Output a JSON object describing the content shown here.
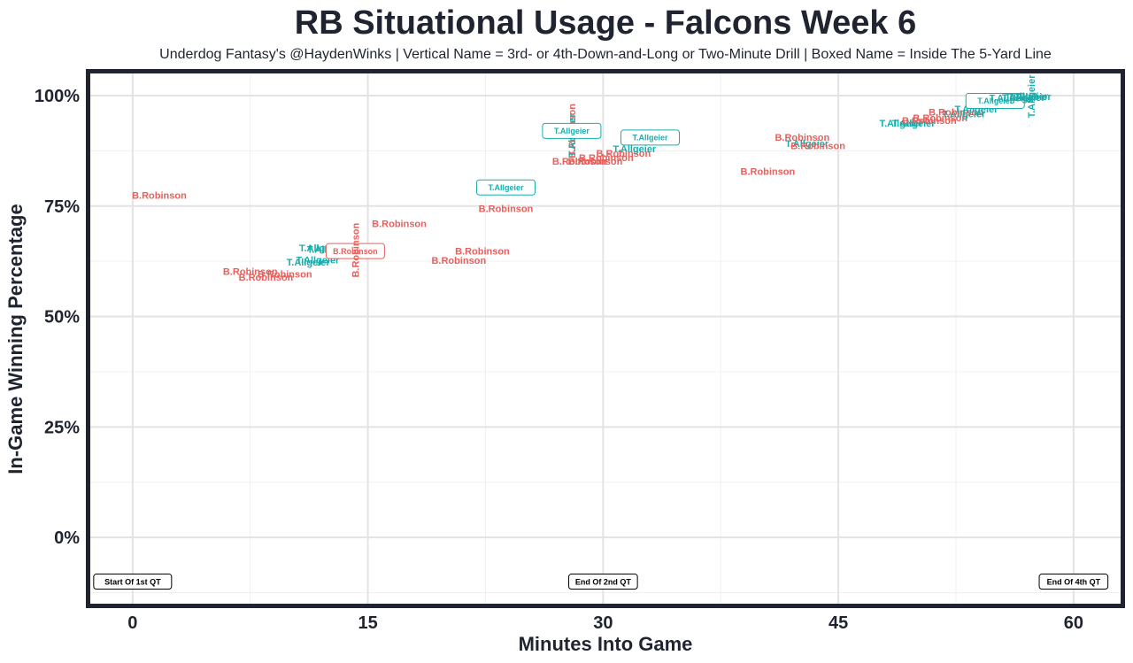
{
  "chart_data": {
    "type": "scatter",
    "title": "RB Situational Usage - Falcons Week 6",
    "subtitle": "Underdog Fantasy's @HaydenWinks | Vertical Name = 3rd- or 4th-Down-and-Long or Two-Minute Drill | Boxed Name = Inside The 5-Yard Line",
    "xlabel": "Minutes Into Game",
    "ylabel": "In-Game Winning Percentage",
    "xlim": [
      -2.7,
      63
    ],
    "ylim": [
      -15,
      105
    ],
    "x_ticks": [
      0,
      15,
      30,
      45,
      60
    ],
    "x_tick_labels": [
      "0",
      "15",
      "30",
      "45",
      "60"
    ],
    "y_ticks": [
      0,
      25,
      50,
      75,
      100
    ],
    "y_tick_labels": [
      "0%",
      "25%",
      "50%",
      "75%",
      "100%"
    ],
    "grid": true,
    "series_colors": {
      "B.Robinson": "#e8605c",
      "T.Allgeier": "#1aadad"
    },
    "quarter_markers": [
      {
        "x": 0,
        "y": -10,
        "label": "Start Of 1st QT"
      },
      {
        "x": 30,
        "y": -10,
        "label": "End Of 2nd QT"
      },
      {
        "x": 60,
        "y": -10,
        "label": "End Of 4th QT"
      }
    ],
    "points": [
      {
        "name": "B.Robinson",
        "x": 1.7,
        "y": 77.5
      },
      {
        "name": "B.Robinson",
        "x": 7.5,
        "y": 60.2
      },
      {
        "name": "B.Robinson",
        "x": 8.5,
        "y": 58.9
      },
      {
        "name": "B.Robinson",
        "x": 9.7,
        "y": 59.6
      },
      {
        "name": "T.Allgeier",
        "x": 12.0,
        "y": 65.5
      },
      {
        "name": "T.Allgeier",
        "x": 12.5,
        "y": 65.2
      },
      {
        "name": "T.Allgeier",
        "x": 11.2,
        "y": 62.3
      },
      {
        "name": "T.Allgeier",
        "x": 11.8,
        "y": 62.8
      },
      {
        "name": "B.Robinson",
        "x": 14.2,
        "y": 64.8,
        "boxed": true
      },
      {
        "name": "B.Robinson",
        "x": 14.2,
        "y": 65.0,
        "vertical": true
      },
      {
        "name": "B.Robinson",
        "x": 17.0,
        "y": 71.0
      },
      {
        "name": "B.Robinson",
        "x": 22.3,
        "y": 64.8
      },
      {
        "name": "B.Robinson",
        "x": 20.8,
        "y": 62.7
      },
      {
        "name": "B.Robinson",
        "x": 23.8,
        "y": 74.4
      },
      {
        "name": "T.Allgeier",
        "x": 23.8,
        "y": 79.2,
        "boxed": true
      },
      {
        "name": "B.Robinson",
        "x": 28.0,
        "y": 92.0,
        "vertical": true
      },
      {
        "name": "T.Allgeier",
        "x": 28.0,
        "y": 91.0,
        "vertical": true
      },
      {
        "name": "T.Allgeier",
        "x": 28.0,
        "y": 92.0,
        "boxed": true
      },
      {
        "name": "B.Robinson",
        "x": 28.5,
        "y": 85.2
      },
      {
        "name": "B.Robinson",
        "x": 29.5,
        "y": 85.2
      },
      {
        "name": "B.Robinson",
        "x": 30.2,
        "y": 86.0
      },
      {
        "name": "B.Robinson",
        "x": 31.3,
        "y": 87.0
      },
      {
        "name": "T.Allgeier",
        "x": 32.0,
        "y": 88.0
      },
      {
        "name": "T.Allgeier",
        "x": 33.0,
        "y": 90.5,
        "boxed": true
      },
      {
        "name": "B.Robinson",
        "x": 40.5,
        "y": 82.9
      },
      {
        "name": "B.Robinson",
        "x": 42.7,
        "y": 90.6
      },
      {
        "name": "T.Allgeier",
        "x": 43.0,
        "y": 89.2
      },
      {
        "name": "B.Robinson",
        "x": 43.7,
        "y": 88.7
      },
      {
        "name": "T.Allgeier",
        "x": 49.0,
        "y": 93.8
      },
      {
        "name": "T.Allgeier",
        "x": 49.8,
        "y": 93.8
      },
      {
        "name": "B.Robinson",
        "x": 50.8,
        "y": 94.4
      },
      {
        "name": "B.Robinson",
        "x": 51.5,
        "y": 95.0
      },
      {
        "name": "T.Allgeier",
        "x": 53.0,
        "y": 95.9
      },
      {
        "name": "B.Robinson",
        "x": 52.5,
        "y": 96.3
      },
      {
        "name": "T.Allgeier",
        "x": 53.8,
        "y": 97.0
      },
      {
        "name": "T.Allgeier",
        "x": 55.0,
        "y": 98.8,
        "boxed": true
      },
      {
        "name": "T.Allgeier",
        "x": 56.0,
        "y": 99.5
      },
      {
        "name": "T.Allgeier",
        "x": 56.8,
        "y": 99.6
      },
      {
        "name": "T.Allgeier",
        "x": 57.2,
        "y": 99.8
      },
      {
        "name": "T.Allgeier",
        "x": 57.0,
        "y": 99.9
      },
      {
        "name": "T.Allgeier",
        "x": 57.3,
        "y": 99.8,
        "vertical": true
      }
    ]
  }
}
